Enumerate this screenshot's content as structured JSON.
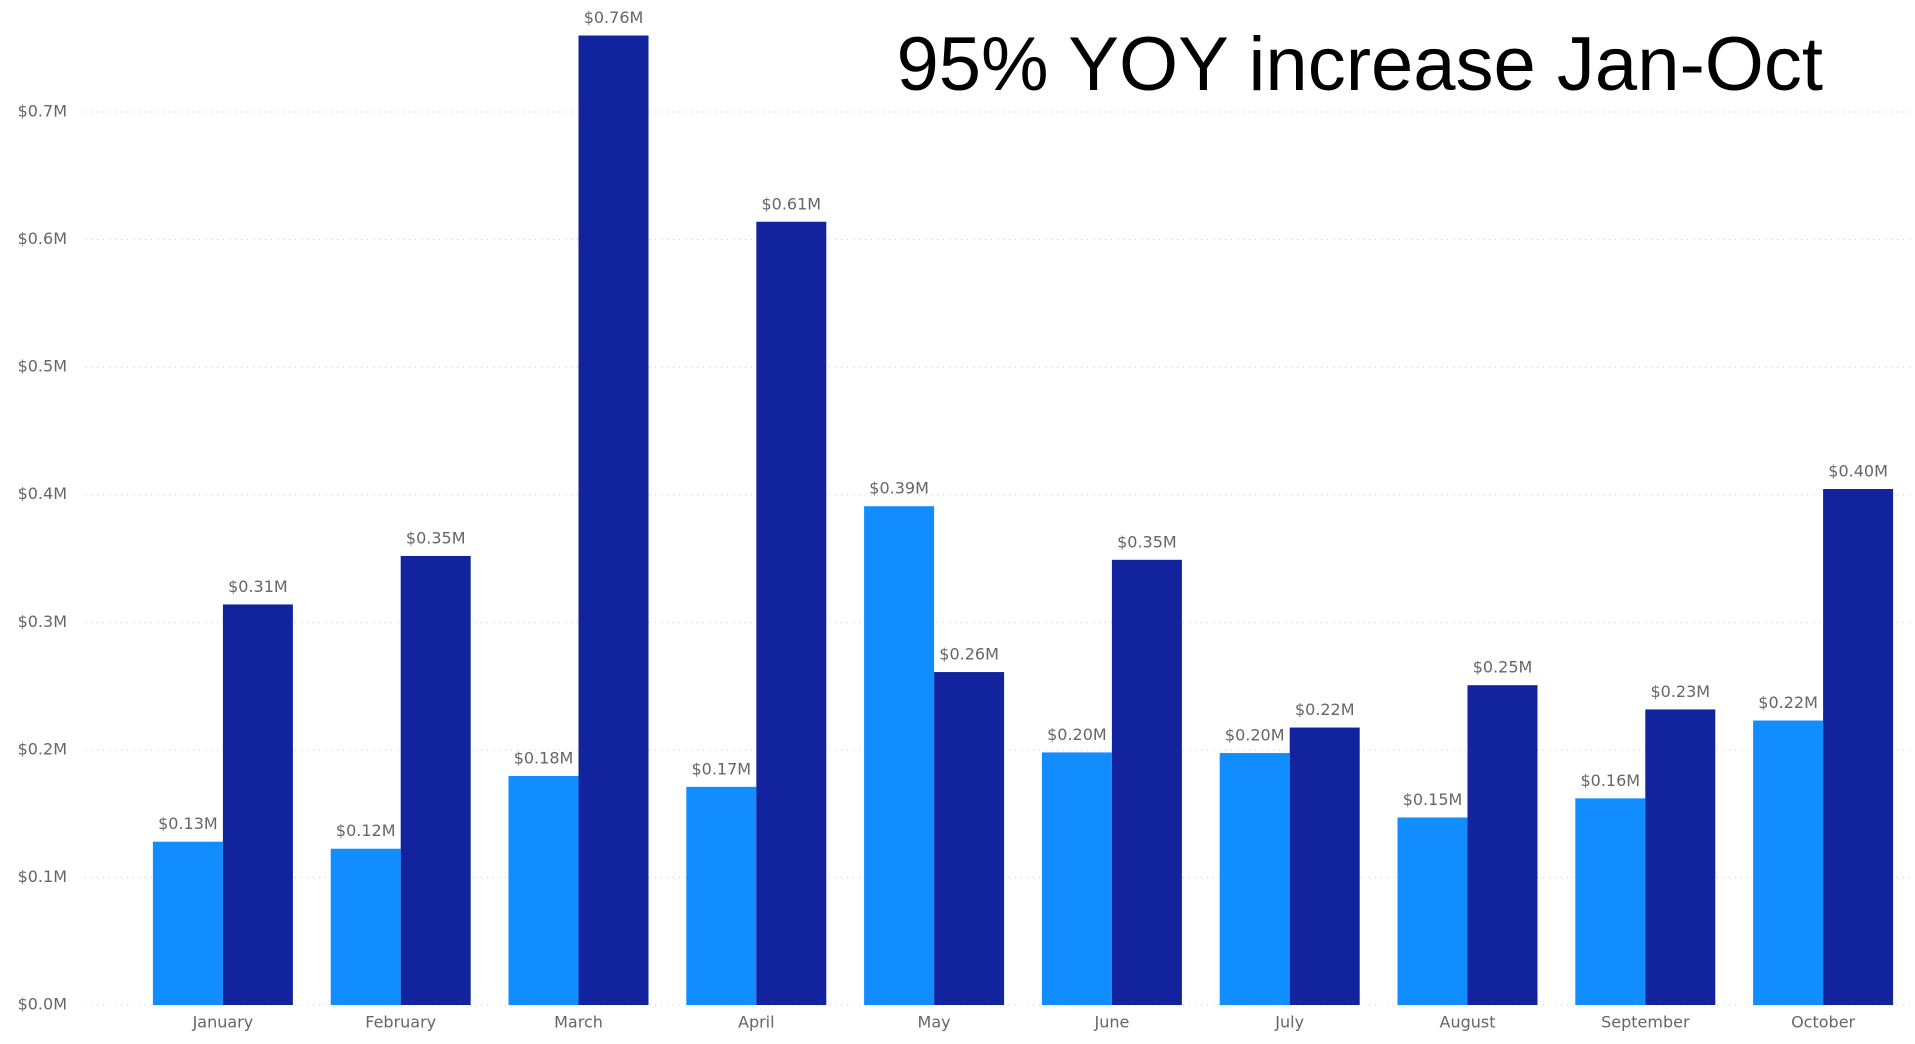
{
  "chart_data": {
    "type": "bar",
    "title": "95% YOY increase Jan-Oct",
    "categories": [
      "January",
      "February",
      "March",
      "April",
      "May",
      "June",
      "July",
      "August",
      "September",
      "October"
    ],
    "series": [
      {
        "color": "#118dff",
        "values": [
          0.128,
          0.1225,
          0.1795,
          0.171,
          0.391,
          0.198,
          0.1975,
          0.147,
          0.162,
          0.223
        ],
        "value_labels": [
          "$0.13M",
          "$0.12M",
          "$0.18M",
          "$0.17M",
          "$0.39M",
          "$0.20M",
          "$0.20M",
          "$0.15M",
          "$0.16M",
          "$0.22M"
        ]
      },
      {
        "color": "#12239e",
        "values": [
          0.314,
          0.352,
          0.76,
          0.614,
          0.261,
          0.349,
          0.2175,
          0.2507,
          0.2317,
          0.4045
        ],
        "value_labels": [
          "$0.31M",
          "$0.35M",
          "$0.76M",
          "$0.61M",
          "$0.26M",
          "$0.35M",
          "$0.22M",
          "$0.25M",
          "$0.23M",
          "$0.40M"
        ]
      }
    ],
    "ylim": [
      0,
      0.78
    ],
    "yticks": [
      {
        "value": 0,
        "label": "$0.0M"
      },
      {
        "value": 0.1,
        "label": "$0.1M"
      },
      {
        "value": 0.2,
        "label": "$0.2M"
      },
      {
        "value": 0.3,
        "label": "$0.3M"
      },
      {
        "value": 0.4,
        "label": "$0.4M"
      },
      {
        "value": 0.5,
        "label": "$0.5M"
      },
      {
        "value": 0.6,
        "label": "$0.6M"
      },
      {
        "value": 0.7,
        "label": "$0.7M"
      }
    ],
    "grid": true
  }
}
